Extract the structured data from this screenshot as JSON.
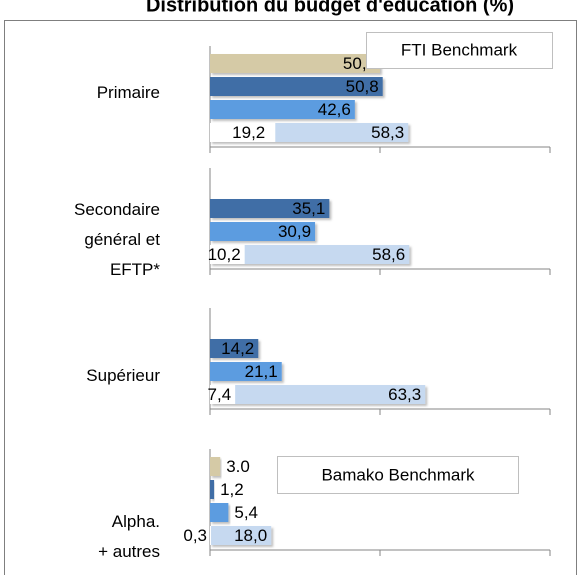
{
  "chart_data": {
    "type": "bar",
    "orientation": "horizontal",
    "title": "Distribution du budget d'éducation (%)",
    "categories": [
      "Primaire",
      "Secondaire\ngénéral et\nEFTP*",
      "Supérieur",
      "Alpha.\n+ autres"
    ],
    "xlim": [
      0,
      100
    ],
    "xticks": [
      0,
      50,
      100
    ],
    "series": [
      {
        "color": "#d5caa6",
        "values": [
          50.0,
          null,
          null,
          3.0
        ],
        "value_labels": [
          "50,0",
          null,
          null,
          "3.0"
        ]
      },
      {
        "color": "#3f6ea6",
        "values": [
          50.8,
          35.1,
          14.2,
          1.2
        ],
        "value_labels": [
          "50,8",
          "35,1",
          "14,2",
          "1,2"
        ]
      },
      {
        "color": "#5b9ce0",
        "values": [
          42.6,
          30.9,
          21.1,
          5.4
        ],
        "value_labels": [
          "42,6",
          "30,9",
          "21,1",
          "5,4"
        ]
      },
      {
        "color": "#c6d9f0",
        "values": [
          58.3,
          58.6,
          63.3,
          18.0
        ],
        "value_labels": [
          "58,3",
          "58,6",
          "63,3",
          "18,0"
        ]
      },
      {
        "color": "#ffffff",
        "values": [
          19.2,
          10.2,
          7.4,
          0.3
        ],
        "value_labels": [
          "19,2",
          "10,2",
          "7,4",
          "0,3"
        ]
      }
    ],
    "annotations": [
      "FTI Benchmark",
      "Bamako Benchmark"
    ]
  }
}
